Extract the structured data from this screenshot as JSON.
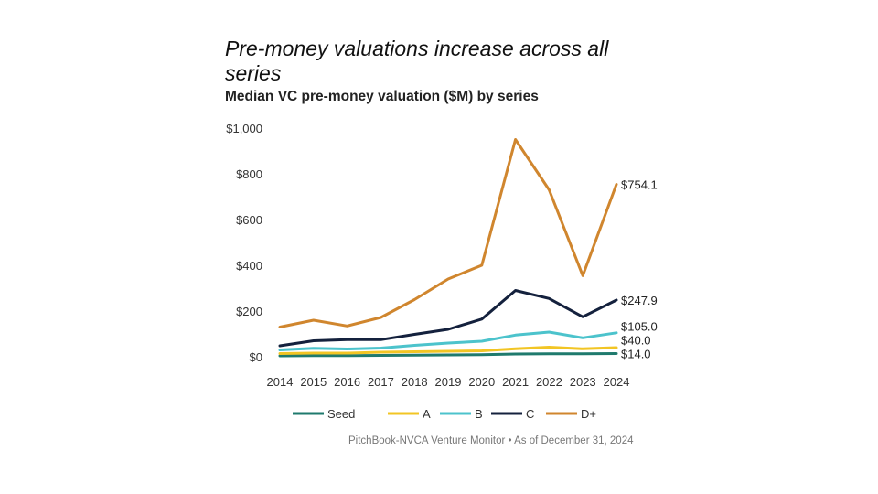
{
  "header": {
    "title": "Pre-money valuations increase across all series",
    "subtitle": "Median VC pre-money valuation ($M) by series"
  },
  "footer": {
    "source": "PitchBook-NVCA Venture Monitor  •  As of December 31, 2024"
  },
  "chart_data": {
    "type": "line",
    "title": "Pre-money valuations increase across all series",
    "subtitle": "Median VC pre-money valuation ($M) by series",
    "xlabel": "",
    "ylabel": "",
    "ylim": [
      0,
      1000
    ],
    "yticks": [
      0,
      200,
      400,
      600,
      800,
      1000
    ],
    "ytick_labels": [
      "$0",
      "$200",
      "$400",
      "$600",
      "$800",
      "$1,000"
    ],
    "categories": [
      "2014",
      "2015",
      "2016",
      "2017",
      "2018",
      "2019",
      "2020",
      "2021",
      "2022",
      "2023",
      "2024"
    ],
    "grid": false,
    "legend_position": "bottom",
    "series": [
      {
        "name": "Seed",
        "color": "#1f7a6d",
        "values": [
          4,
          5,
          5,
          6,
          7,
          8,
          9,
          12,
          13,
          13,
          14
        ],
        "end_label": "$14.0"
      },
      {
        "name": "A",
        "color": "#f2c524",
        "values": [
          14,
          16,
          16,
          20,
          22,
          24,
          26,
          35,
          42,
          35,
          40
        ],
        "end_label": "$40.0"
      },
      {
        "name": "B",
        "color": "#4cc3cc",
        "values": [
          30,
          37,
          34,
          38,
          50,
          60,
          68,
          95,
          108,
          83,
          105
        ],
        "end_label": "$105.0"
      },
      {
        "name": "C",
        "color": "#14213d",
        "values": [
          48,
          70,
          75,
          75,
          98,
          120,
          165,
          290,
          255,
          175,
          247.9
        ],
        "end_label": "$247.9"
      },
      {
        "name": "D+",
        "color": "#d0862e",
        "values": [
          130,
          160,
          135,
          172,
          250,
          340,
          400,
          950,
          730,
          355,
          754.1
        ],
        "end_label": "$754.1"
      }
    ]
  }
}
